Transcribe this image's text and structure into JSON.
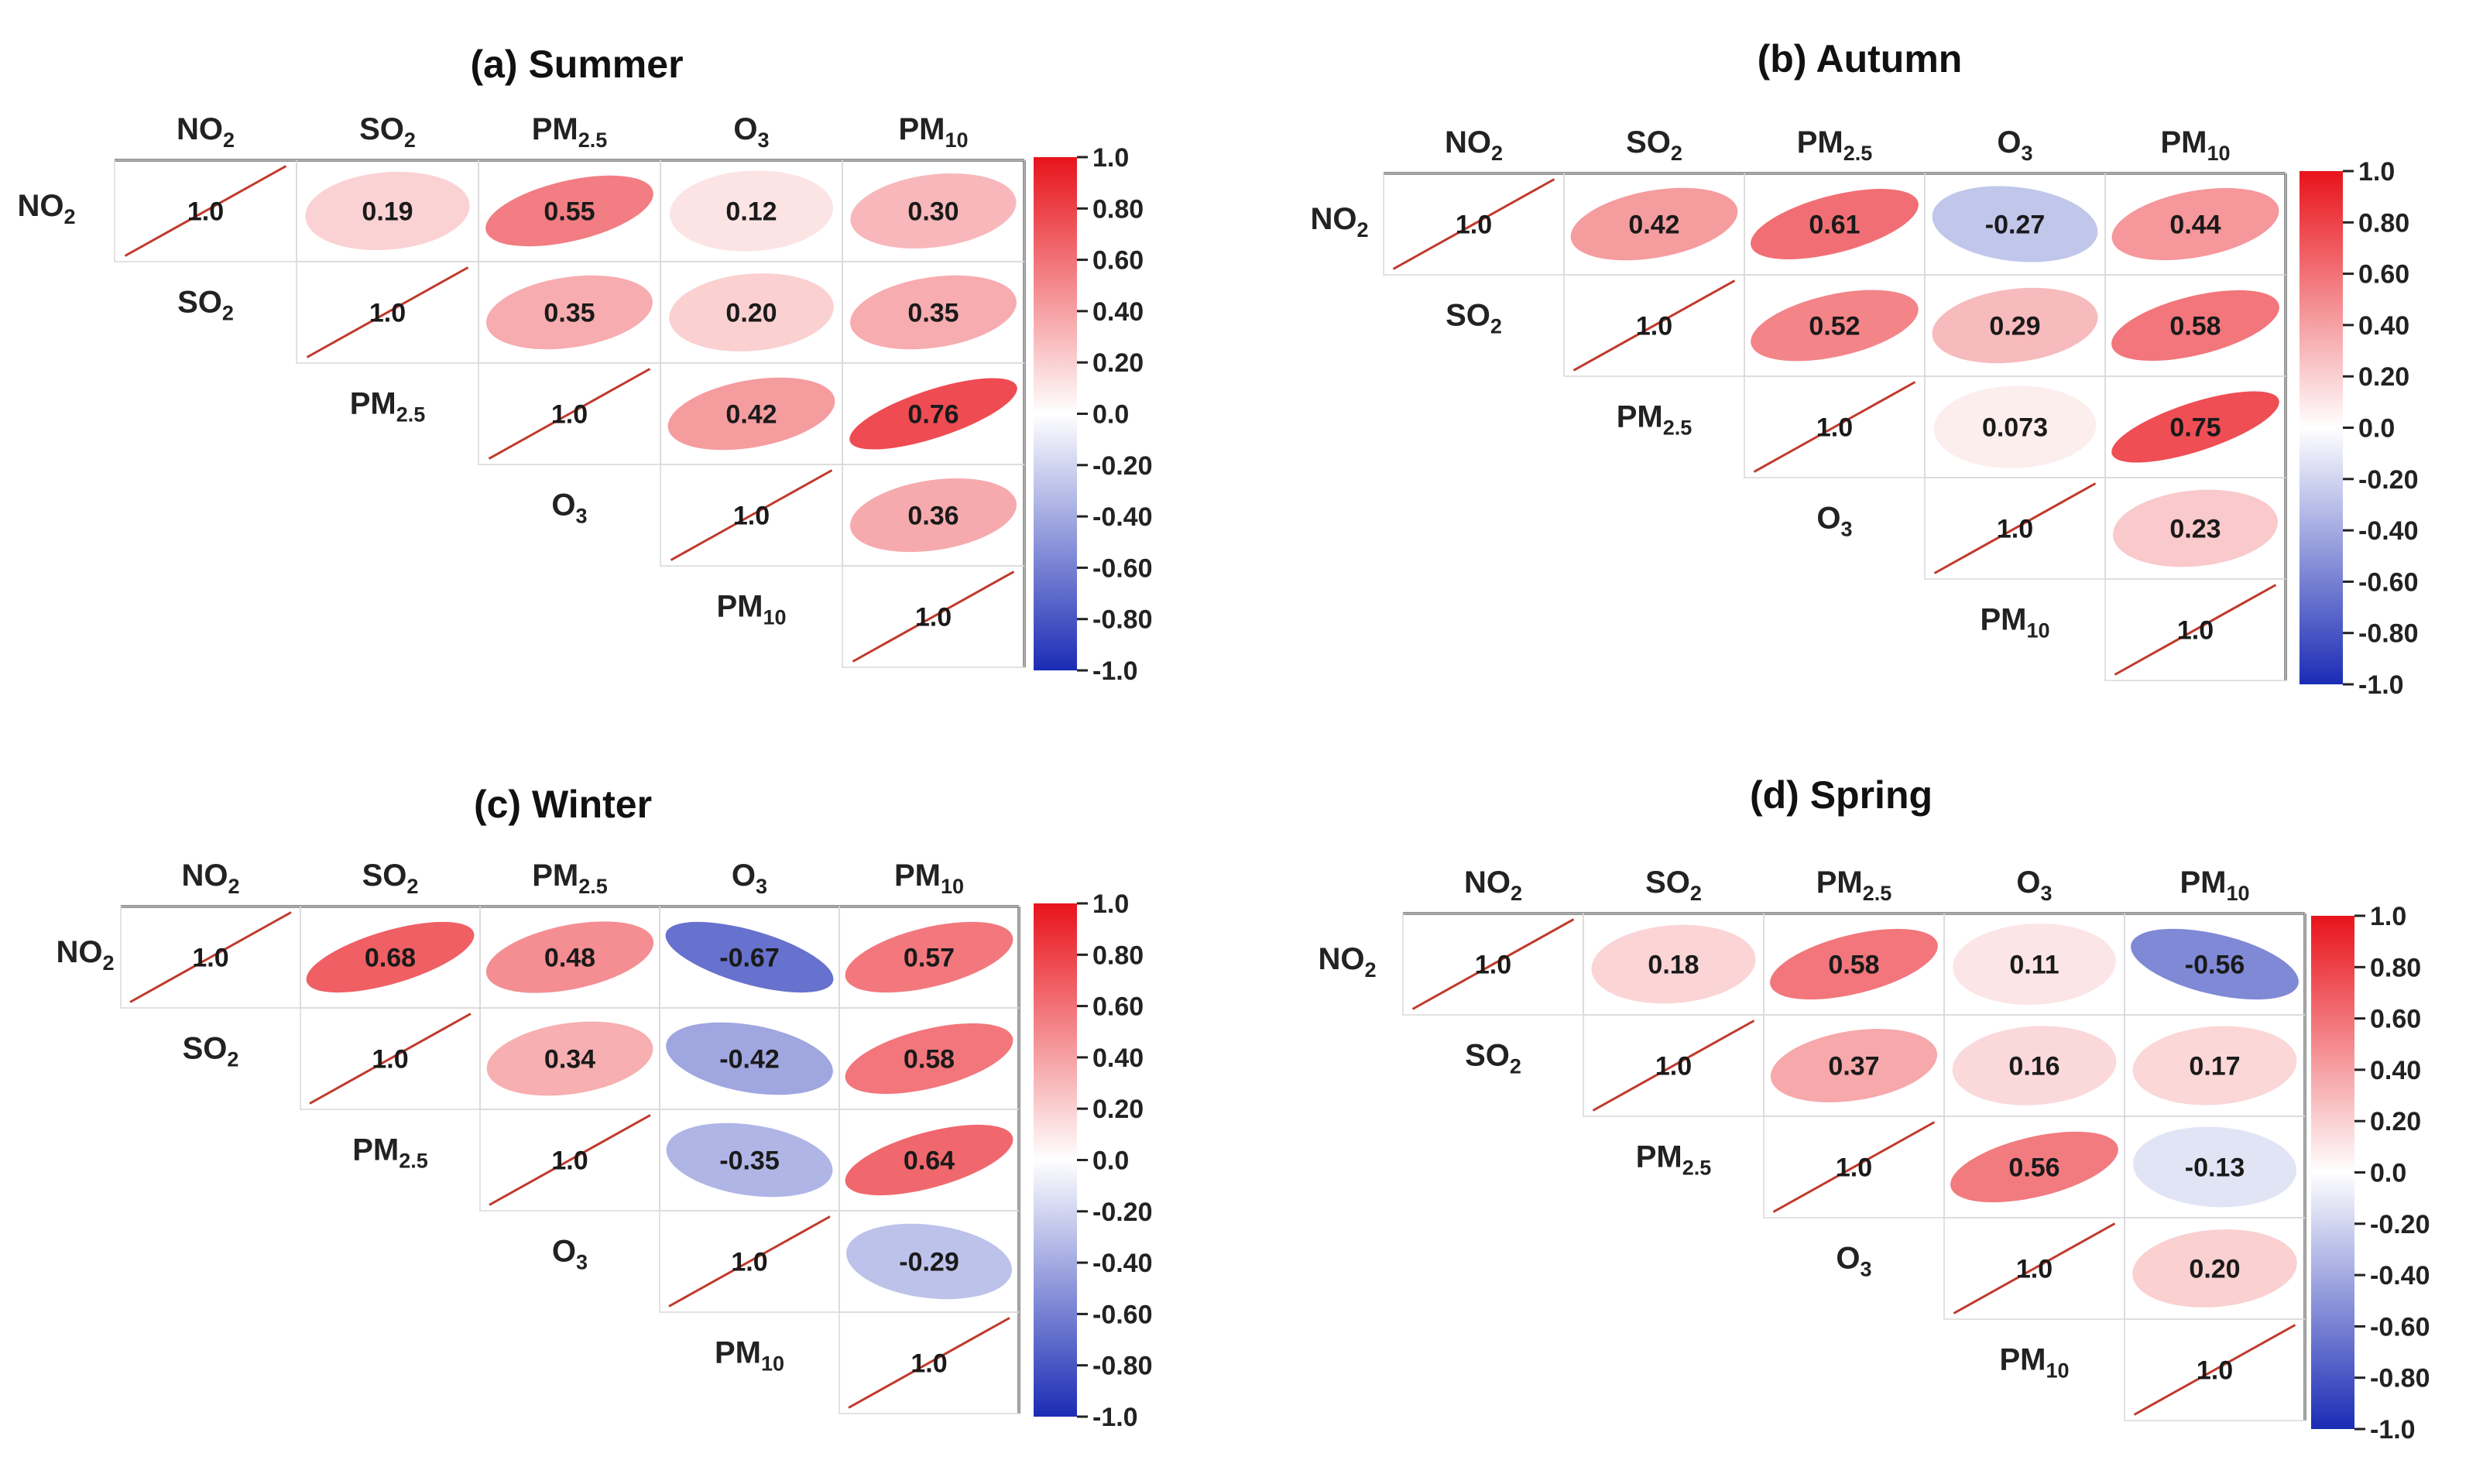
{
  "chart_data": [
    {
      "type": "heatmap",
      "title": "(a) Summer",
      "variables": [
        {
          "base": "NO",
          "sub": "2"
        },
        {
          "base": "SO",
          "sub": "2"
        },
        {
          "base": "PM",
          "sub": "2.5"
        },
        {
          "base": "O",
          "sub": "3"
        },
        {
          "base": "PM",
          "sub": "10"
        }
      ],
      "upper": [
        [
          "1.0",
          "0.19",
          "0.55",
          "0.12",
          "0.30"
        ],
        [
          null,
          "1.0",
          "0.35",
          "0.20",
          "0.35"
        ],
        [
          null,
          null,
          "1.0",
          "0.42",
          "0.76"
        ],
        [
          null,
          null,
          null,
          "1.0",
          "0.36"
        ],
        [
          null,
          null,
          null,
          null,
          "1.0"
        ]
      ],
      "colorbar": {
        "min": -1.0,
        "max": 1.0,
        "ticks": [
          "1.0",
          "0.80",
          "0.60",
          "0.40",
          "0.20",
          "0.0",
          "-0.20",
          "-0.40",
          "-0.60",
          "-0.80",
          "-1.0"
        ]
      }
    },
    {
      "type": "heatmap",
      "title": "(b) Autumn",
      "variables": [
        {
          "base": "NO",
          "sub": "2"
        },
        {
          "base": "SO",
          "sub": "2"
        },
        {
          "base": "PM",
          "sub": "2.5"
        },
        {
          "base": "O",
          "sub": "3"
        },
        {
          "base": "PM",
          "sub": "10"
        }
      ],
      "upper": [
        [
          "1.0",
          "0.42",
          "0.61",
          "-0.27",
          "0.44"
        ],
        [
          null,
          "1.0",
          "0.52",
          "0.29",
          "0.58"
        ],
        [
          null,
          null,
          "1.0",
          "0.073",
          "0.75"
        ],
        [
          null,
          null,
          null,
          "1.0",
          "0.23"
        ],
        [
          null,
          null,
          null,
          null,
          "1.0"
        ]
      ],
      "colorbar": {
        "min": -1.0,
        "max": 1.0,
        "ticks": [
          "1.0",
          "0.80",
          "0.60",
          "0.40",
          "0.20",
          "0.0",
          "-0.20",
          "-0.40",
          "-0.60",
          "-0.80",
          "-1.0"
        ]
      }
    },
    {
      "type": "heatmap",
      "title": "(c) Winter",
      "variables": [
        {
          "base": "NO",
          "sub": "2"
        },
        {
          "base": "SO",
          "sub": "2"
        },
        {
          "base": "PM",
          "sub": "2.5"
        },
        {
          "base": "O",
          "sub": "3"
        },
        {
          "base": "PM",
          "sub": "10"
        }
      ],
      "upper": [
        [
          "1.0",
          "0.68",
          "0.48",
          "-0.67",
          "0.57"
        ],
        [
          null,
          "1.0",
          "0.34",
          "-0.42",
          "0.58"
        ],
        [
          null,
          null,
          "1.0",
          "-0.35",
          "0.64"
        ],
        [
          null,
          null,
          null,
          "1.0",
          "-0.29"
        ],
        [
          null,
          null,
          null,
          null,
          "1.0"
        ]
      ],
      "colorbar": {
        "min": -1.0,
        "max": 1.0,
        "ticks": [
          "1.0",
          "0.80",
          "0.60",
          "0.40",
          "0.20",
          "0.0",
          "-0.20",
          "-0.40",
          "-0.60",
          "-0.80",
          "-1.0"
        ]
      }
    },
    {
      "type": "heatmap",
      "title": "(d) Spring",
      "variables": [
        {
          "base": "NO",
          "sub": "2"
        },
        {
          "base": "SO",
          "sub": "2"
        },
        {
          "base": "PM",
          "sub": "2.5"
        },
        {
          "base": "O",
          "sub": "3"
        },
        {
          "base": "PM",
          "sub": "10"
        }
      ],
      "upper": [
        [
          "1.0",
          "0.18",
          "0.58",
          "0.11",
          "-0.56"
        ],
        [
          null,
          "1.0",
          "0.37",
          "0.16",
          "0.17"
        ],
        [
          null,
          null,
          "1.0",
          "0.56",
          "-0.13"
        ],
        [
          null,
          null,
          null,
          "1.0",
          "0.20"
        ],
        [
          null,
          null,
          null,
          null,
          "1.0"
        ]
      ],
      "colorbar": {
        "min": -1.0,
        "max": 1.0,
        "ticks": [
          "1.0",
          "0.80",
          "0.60",
          "0.40",
          "0.20",
          "0.0",
          "-0.20",
          "-0.40",
          "-0.60",
          "-0.80",
          "-1.0"
        ]
      }
    }
  ],
  "colors": {
    "positive": "#e8131b",
    "negative": "#1b2cb5",
    "neutral": "#ffffff",
    "diagonal_line": "#c0392b",
    "grid": "#d8d8d8"
  }
}
